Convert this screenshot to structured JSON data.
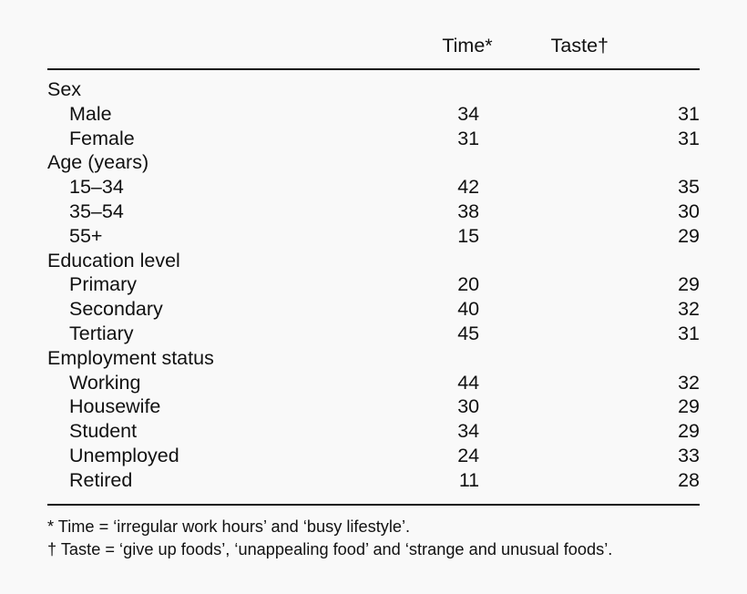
{
  "header": {
    "col_time": "Time*",
    "col_taste": "Taste†"
  },
  "groups": [
    {
      "label": "Sex",
      "rows": [
        {
          "label": "Male",
          "time": "34",
          "taste": "31"
        },
        {
          "label": "Female",
          "time": "31",
          "taste": "31"
        }
      ]
    },
    {
      "label": "Age (years)",
      "rows": [
        {
          "label": "15–34",
          "time": "42",
          "taste": "35"
        },
        {
          "label": "35–54",
          "time": "38",
          "taste": "30"
        },
        {
          "label": "55+",
          "time": "15",
          "taste": "29"
        }
      ]
    },
    {
      "label": "Education level",
      "rows": [
        {
          "label": "Primary",
          "time": "20",
          "taste": "29"
        },
        {
          "label": "Secondary",
          "time": "40",
          "taste": "32"
        },
        {
          "label": "Tertiary",
          "time": "45",
          "taste": "31"
        }
      ]
    },
    {
      "label": "Employment status",
      "rows": [
        {
          "label": "Working",
          "time": "44",
          "taste": "32"
        },
        {
          "label": "Housewife",
          "time": "30",
          "taste": "29"
        },
        {
          "label": "Student",
          "time": "34",
          "taste": "29"
        },
        {
          "label": "Unemployed",
          "time": "24",
          "taste": "33"
        },
        {
          "label": "Retired",
          "time": "11",
          "taste": "28"
        }
      ]
    }
  ],
  "footnotes": [
    "* Time = ‘irregular work hours’ and ‘busy lifestyle’.",
    "† Taste = ‘give up foods’, ‘unappealing food’ and ‘strange and unusual foods’."
  ]
}
